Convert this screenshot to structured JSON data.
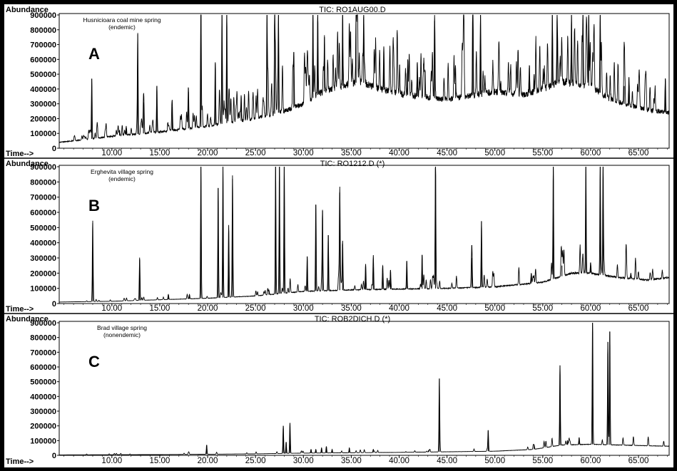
{
  "chart_data": [
    {
      "type": "line",
      "panel_letter": "A",
      "title": "TIC: RO1AUG00.D",
      "ylabel": "Abundance",
      "xlabel": "Time-->",
      "sample_label_line1": "Husnicioara coal mine spring",
      "sample_label_line2": "(endemic)",
      "xlim": [
        4.5,
        68.2
      ],
      "ylim": [
        0,
        900000
      ],
      "yticks": [
        "0",
        "100000",
        "200000",
        "300000",
        "400000",
        "500000",
        "600000",
        "700000",
        "800000",
        "900000"
      ],
      "xticks": [
        "10.00",
        "15.00",
        "20.00",
        "25.00",
        "30.00",
        "35.00",
        "40.00",
        "45.00",
        "50.00",
        "55.00",
        "60.00",
        "65.00"
      ],
      "baseline": [
        [
          4.5,
          40000
        ],
        [
          7.5,
          60000
        ],
        [
          10,
          80000
        ],
        [
          15,
          110000
        ],
        [
          20,
          150000
        ],
        [
          25,
          200000
        ],
        [
          28,
          250000
        ],
        [
          30,
          300000
        ],
        [
          32,
          380000
        ],
        [
          34,
          420000
        ],
        [
          36,
          450000
        ],
        [
          38,
          400000
        ],
        [
          40,
          370000
        ],
        [
          42,
          350000
        ],
        [
          45,
          330000
        ],
        [
          48,
          360000
        ],
        [
          50,
          380000
        ],
        [
          53,
          360000
        ],
        [
          55,
          400000
        ],
        [
          57,
          450000
        ],
        [
          60,
          420000
        ],
        [
          62,
          330000
        ],
        [
          64,
          290000
        ],
        [
          66,
          260000
        ],
        [
          68,
          240000
        ]
      ],
      "peaks": [
        [
          7.9,
          470000
        ],
        [
          10.8,
          120000
        ],
        [
          11.5,
          150000
        ],
        [
          12.7,
          770000
        ],
        [
          13.3,
          310000
        ],
        [
          14.7,
          420000
        ],
        [
          16.3,
          280000
        ],
        [
          18,
          380000
        ],
        [
          19.3,
          900000
        ],
        [
          20.8,
          580000
        ],
        [
          21.5,
          900000
        ],
        [
          22,
          900000
        ],
        [
          23.5,
          350000
        ],
        [
          26.2,
          900000
        ],
        [
          27,
          900000
        ],
        [
          27.4,
          900000
        ],
        [
          29,
          650000
        ],
        [
          31,
          900000
        ],
        [
          31.5,
          900000
        ],
        [
          32.2,
          750000
        ],
        [
          34.1,
          900000
        ],
        [
          35.5,
          900000
        ],
        [
          36.3,
          900000
        ],
        [
          38.4,
          680000
        ],
        [
          40.9,
          600000
        ],
        [
          41.9,
          580000
        ],
        [
          42.7,
          520000
        ],
        [
          43.7,
          860000
        ],
        [
          45.9,
          440000
        ],
        [
          47.7,
          900000
        ],
        [
          48.5,
          900000
        ],
        [
          50.6,
          440000
        ],
        [
          53.6,
          560000
        ],
        [
          54.1,
          500000
        ],
        [
          56,
          900000
        ],
        [
          56.5,
          900000
        ],
        [
          58,
          900000
        ],
        [
          59.2,
          900000
        ],
        [
          59.8,
          900000
        ],
        [
          61,
          900000
        ],
        [
          63.5,
          420000
        ],
        [
          64,
          480000
        ],
        [
          67.8,
          470000
        ]
      ]
    },
    {
      "type": "line",
      "panel_letter": "B",
      "title": "TIC: RO1212.D (*)",
      "ylabel": "Abundance",
      "xlabel": "Time-->",
      "sample_label_line1": "Erghevita village spring",
      "sample_label_line2": "(endemic)",
      "xlim": [
        4.5,
        68.2
      ],
      "ylim": [
        0,
        900000
      ],
      "yticks": [
        "0",
        "100000",
        "200000",
        "300000",
        "400000",
        "500000",
        "600000",
        "700000",
        "800000",
        "900000"
      ],
      "xticks": [
        "10.00",
        "15.00",
        "20.00",
        "25.00",
        "30.00",
        "35.00",
        "40.00",
        "45.00",
        "50.00",
        "55.00",
        "60.00",
        "65.00"
      ],
      "baseline": [
        [
          4.5,
          10000
        ],
        [
          10,
          15000
        ],
        [
          15,
          25000
        ],
        [
          20,
          35000
        ],
        [
          25,
          50000
        ],
        [
          30,
          80000
        ],
        [
          35,
          90000
        ],
        [
          40,
          95000
        ],
        [
          45,
          100000
        ],
        [
          50,
          110000
        ],
        [
          55,
          140000
        ],
        [
          58,
          200000
        ],
        [
          60,
          200000
        ],
        [
          63,
          170000
        ],
        [
          66,
          155000
        ],
        [
          68,
          170000
        ]
      ],
      "peaks": [
        [
          8,
          530000
        ],
        [
          12.9,
          290000
        ],
        [
          15.9,
          60000
        ],
        [
          18.1,
          60000
        ],
        [
          19.3,
          900000
        ],
        [
          21.1,
          760000
        ],
        [
          21.6,
          900000
        ],
        [
          22.2,
          480000
        ],
        [
          22.6,
          820000
        ],
        [
          26.4,
          90000
        ],
        [
          27.1,
          900000
        ],
        [
          27.5,
          900000
        ],
        [
          28,
          900000
        ],
        [
          30.4,
          310000
        ],
        [
          31.3,
          650000
        ],
        [
          32,
          610000
        ],
        [
          32.6,
          450000
        ],
        [
          33.8,
          730000
        ],
        [
          34.1,
          390000
        ],
        [
          36.5,
          260000
        ],
        [
          37.3,
          240000
        ],
        [
          38.3,
          200000
        ],
        [
          39.1,
          220000
        ],
        [
          40.8,
          280000
        ],
        [
          42.4,
          320000
        ],
        [
          43.8,
          900000
        ],
        [
          47.6,
          300000
        ],
        [
          48.6,
          540000
        ],
        [
          53.8,
          200000
        ],
        [
          56.1,
          900000
        ],
        [
          57,
          250000
        ],
        [
          59.5,
          900000
        ],
        [
          60,
          270000
        ],
        [
          61,
          900000
        ],
        [
          61.3,
          900000
        ],
        [
          64.2,
          200000
        ]
      ]
    },
    {
      "type": "line",
      "panel_letter": "C",
      "title": "TIC: ROB2DICH.D (*)",
      "ylabel": "Abundance",
      "xlabel": "Time-->",
      "sample_label_line1": "Brad village spring",
      "sample_label_line2": "(nonendemic)",
      "xlim": [
        4.5,
        68.2
      ],
      "ylim": [
        0,
        900000
      ],
      "yticks": [
        "0",
        "100000",
        "200000",
        "300000",
        "400000",
        "500000",
        "600000",
        "700000",
        "800000",
        "900000"
      ],
      "xticks": [
        "10.00",
        "15.00",
        "20.00",
        "25.00",
        "30.00",
        "35.00",
        "40.00",
        "45.00",
        "50.00",
        "55.00",
        "60.00",
        "65.00"
      ],
      "baseline": [
        [
          4.5,
          3000
        ],
        [
          15,
          5000
        ],
        [
          25,
          10000
        ],
        [
          30,
          15000
        ],
        [
          40,
          20000
        ],
        [
          50,
          28000
        ],
        [
          54,
          40000
        ],
        [
          57,
          70000
        ],
        [
          60,
          75000
        ],
        [
          63,
          70000
        ],
        [
          66,
          65000
        ],
        [
          68,
          62000
        ]
      ],
      "peaks": [
        [
          19.9,
          70000
        ],
        [
          27.9,
          200000
        ],
        [
          28.2,
          90000
        ],
        [
          28.6,
          220000
        ],
        [
          30.8,
          40000
        ],
        [
          31.3,
          40000
        ],
        [
          31.9,
          50000
        ],
        [
          32.4,
          60000
        ],
        [
          33,
          40000
        ],
        [
          34.8,
          50000
        ],
        [
          37.3,
          40000
        ],
        [
          40.7,
          25000
        ],
        [
          43.1,
          35000
        ],
        [
          44.2,
          520000
        ],
        [
          49.3,
          170000
        ],
        [
          54.1,
          70000
        ],
        [
          56.8,
          610000
        ],
        [
          57.6,
          100000
        ],
        [
          58.8,
          120000
        ],
        [
          60.2,
          940000
        ],
        [
          61.8,
          770000
        ],
        [
          62,
          840000
        ]
      ]
    }
  ]
}
